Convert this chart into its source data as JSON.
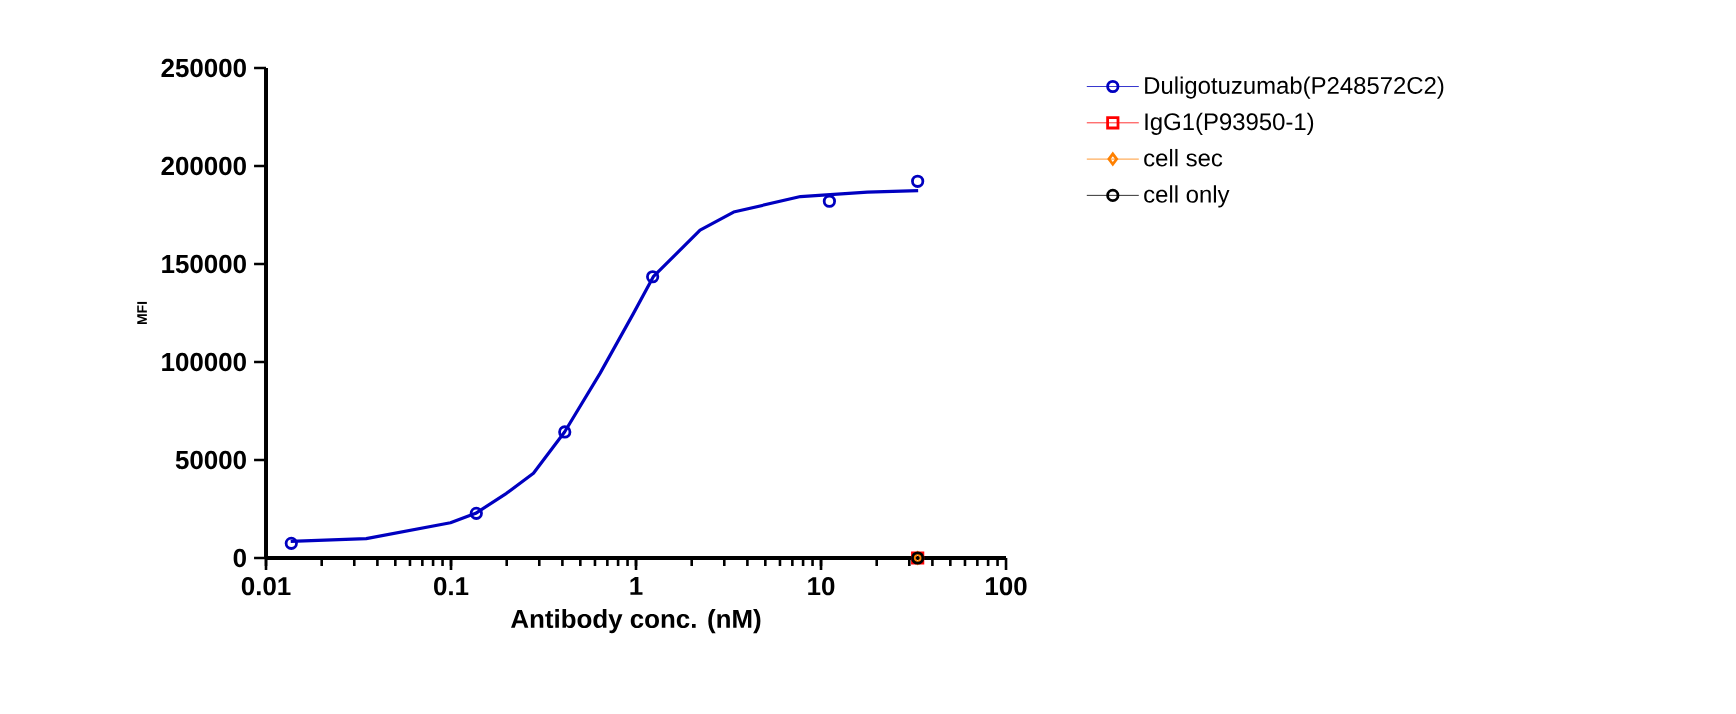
{
  "chart_data": {
    "type": "scatter",
    "xlabel": "Antibody conc. (nM)",
    "ylabel": "MFI",
    "log": "x",
    "xlim": [
      0.01,
      100
    ],
    "xticks": [
      0.01,
      0.1,
      1,
      10,
      100
    ],
    "ylim": [
      0,
      250000
    ],
    "yticks": [
      0,
      50000,
      100000,
      150000,
      200000,
      250000
    ],
    "grid": false,
    "legend": "right",
    "series": [
      {
        "name": "Duligotuzumab(P248572C2)",
        "color": "#0000c0",
        "marker": "circle",
        "x": [
          0.0137,
          0.137,
          0.412,
          1.23,
          11.1,
          33.3
        ],
        "values": [
          7500,
          22800,
          64300,
          143500,
          182000,
          192200
        ]
      },
      {
        "name": "IgG1(P93950-1)",
        "color": "#ff0000",
        "marker": "square",
        "x": [
          33.3
        ],
        "values": [
          0
        ]
      },
      {
        "name": "cell sec",
        "color": "#ff8000",
        "marker": "diamond",
        "x": [
          33.3
        ],
        "values": [
          0
        ]
      },
      {
        "name": "cell only",
        "color": "#000000",
        "marker": "circle",
        "x": [
          33.3
        ],
        "values": [
          0
        ]
      },
      {
        "type": "line",
        "color": "#0000c0",
        "marker": "none",
        "line_style": "solid",
        "x": [
          0.0136,
          0.0348,
          0.0993,
          0.136,
          0.1995,
          0.279,
          0.411,
          0.639,
          0.969,
          1.24,
          2.22,
          3.37,
          7.75,
          17.8,
          33.5
        ],
        "values": [
          8500,
          9900,
          18000,
          22800,
          33000,
          43200,
          64300,
          94200,
          124800,
          143500,
          167300,
          176500,
          184400,
          186700,
          187400
        ]
      }
    ]
  }
}
